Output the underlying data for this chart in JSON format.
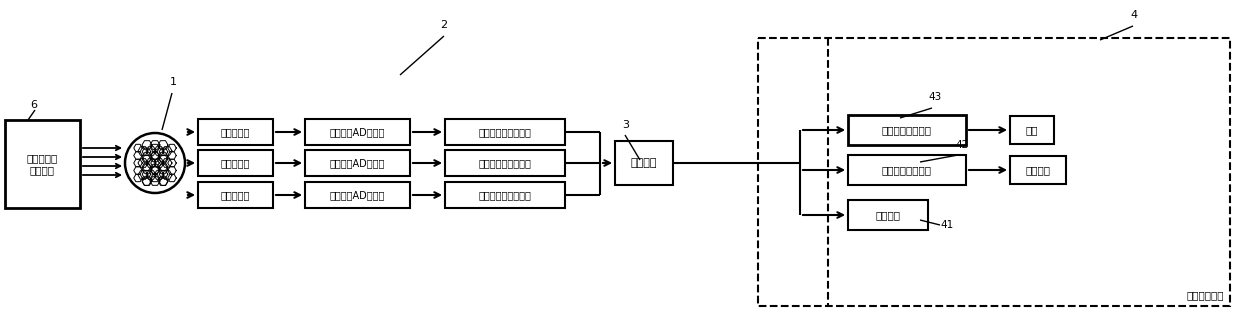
{
  "bg_color": "#ffffff",
  "line_color": "#000000",
  "box_color": "#ffffff",
  "box_edge": "#000000",
  "fig_width": 12.38,
  "fig_height": 3.23,
  "labels": {
    "device_box": "变电站电力\n高压设备",
    "sensor1": "红外传感器",
    "sensor2": "紫外传感器",
    "sensor3": "高清传感器",
    "ad1": "红外信号AD转换器",
    "ad2": "紫外信号AD转换器",
    "ad3": "高清信号AD转换器",
    "amp1": "红外数字信号放大器",
    "amp2": "紫外数字信号放大器",
    "amp3": "高清数字信号放大器",
    "control": "控制模块",
    "prot1": "开关跳闸保护装置",
    "prot2": "转移负荷保护装置",
    "alarm": "报警装置",
    "out1": "开关",
    "out2": "备用开关",
    "label_protect": "保护执行装置",
    "num1": "1",
    "num2": "2",
    "num3": "3",
    "num4": "4",
    "num41": "41",
    "num42": "42",
    "num43": "43",
    "num6": "6"
  }
}
